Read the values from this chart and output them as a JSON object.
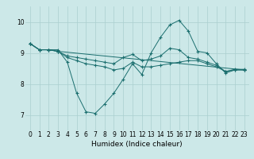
{
  "xlabel": "Humidex (Indice chaleur)",
  "xlim": [
    -0.5,
    23.5
  ],
  "ylim": [
    6.5,
    10.5
  ],
  "yticks": [
    7,
    8,
    9,
    10
  ],
  "xticks": [
    0,
    1,
    2,
    3,
    4,
    5,
    6,
    7,
    8,
    9,
    10,
    11,
    12,
    13,
    14,
    15,
    16,
    17,
    18,
    19,
    20,
    21,
    22,
    23
  ],
  "background_color": "#cce8e8",
  "grid_color": "#aacfcf",
  "line_color": "#1a6e6e",
  "lines": [
    {
      "x": [
        0,
        1,
        2,
        3,
        4,
        5,
        6,
        7,
        8,
        9,
        10,
        11,
        12,
        13,
        14,
        15,
        16,
        17,
        18,
        19,
        20,
        21,
        22,
        23
      ],
      "y": [
        9.3,
        9.1,
        9.1,
        9.1,
        8.7,
        7.7,
        7.1,
        7.05,
        7.35,
        7.7,
        8.15,
        8.65,
        8.3,
        9.0,
        9.5,
        9.9,
        10.05,
        9.7,
        9.05,
        9.0,
        8.65,
        8.35,
        8.45,
        8.45
      ]
    },
    {
      "x": [
        0,
        1,
        2,
        3,
        4,
        5,
        6,
        7,
        8,
        9,
        10,
        11,
        12,
        13,
        14,
        15,
        16,
        17,
        18,
        19,
        20,
        21,
        22,
        23
      ],
      "y": [
        9.3,
        9.1,
        9.1,
        9.05,
        8.85,
        8.75,
        8.65,
        8.6,
        8.55,
        8.45,
        8.5,
        8.7,
        8.55,
        8.55,
        8.6,
        8.65,
        8.7,
        8.75,
        8.75,
        8.65,
        8.55,
        8.4,
        8.45,
        8.45
      ]
    },
    {
      "x": [
        0,
        1,
        2,
        3,
        4,
        5,
        6,
        7,
        8,
        9,
        10,
        11,
        12,
        13,
        14,
        15,
        16,
        17,
        18,
        19,
        20,
        21,
        22,
        23
      ],
      "y": [
        9.3,
        9.1,
        9.1,
        9.05,
        8.9,
        8.85,
        8.8,
        8.75,
        8.7,
        8.65,
        8.85,
        8.95,
        8.75,
        8.8,
        8.9,
        9.15,
        9.1,
        8.85,
        8.8,
        8.7,
        8.6,
        8.4,
        8.47,
        8.47
      ]
    },
    {
      "x": [
        0,
        1,
        2,
        3,
        23
      ],
      "y": [
        9.3,
        9.1,
        9.1,
        9.05,
        8.45
      ]
    }
  ]
}
